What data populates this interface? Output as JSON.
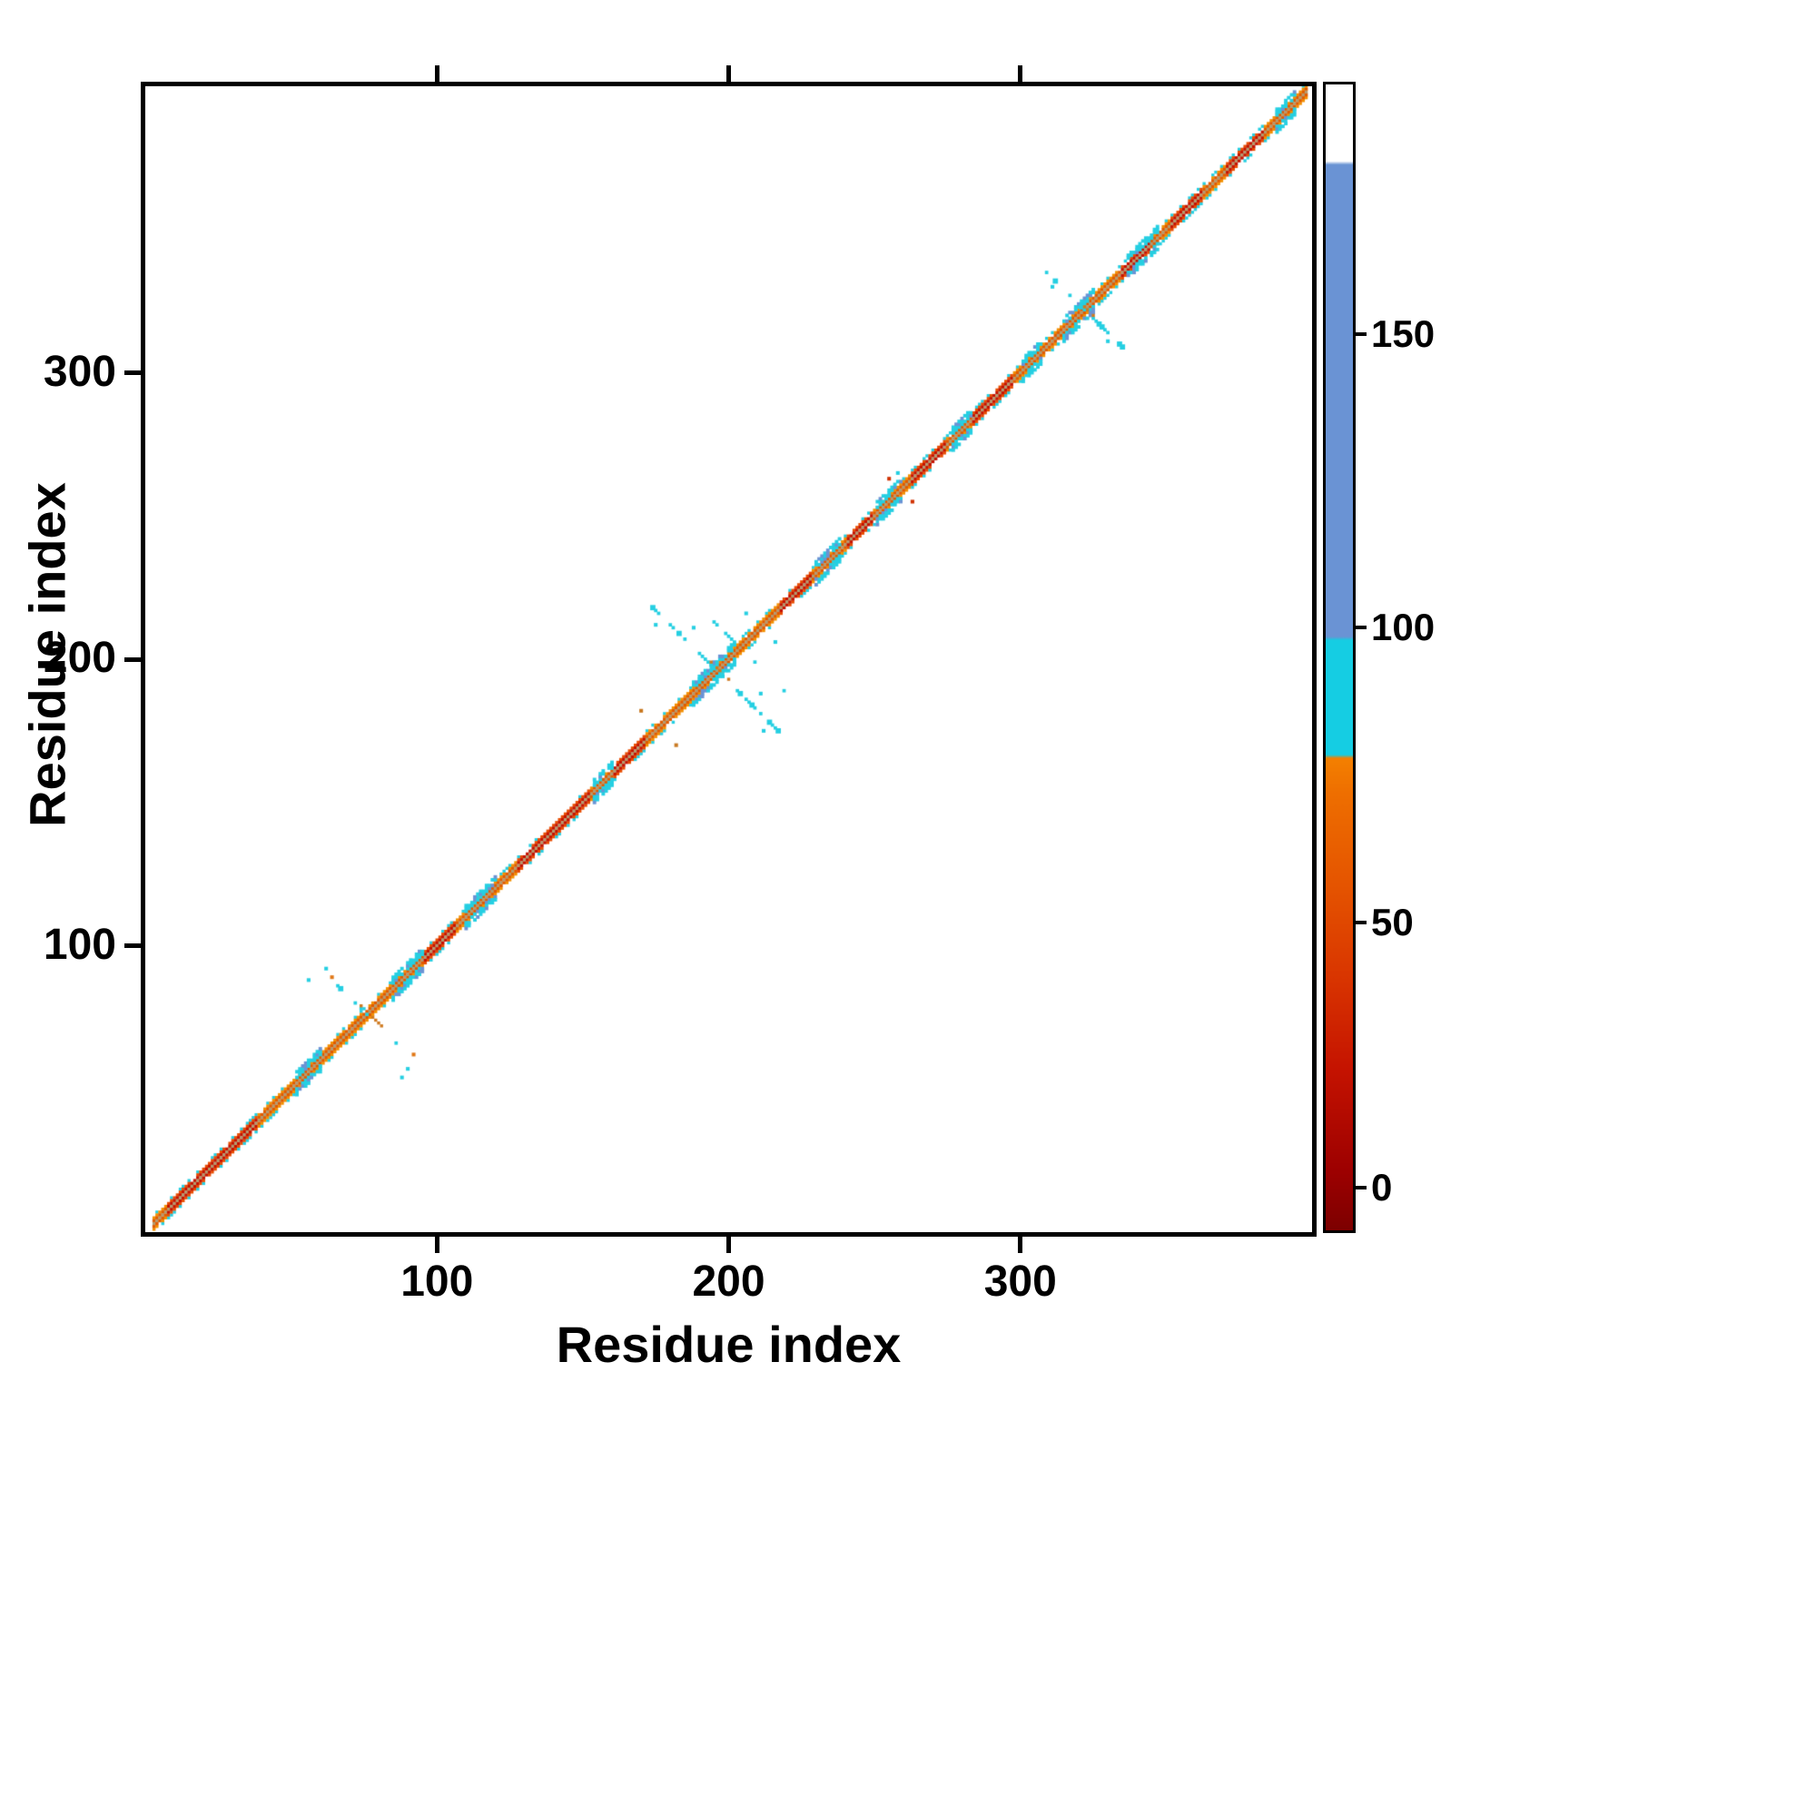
{
  "chart_data": {
    "type": "heatmap",
    "title": "",
    "xlabel": "Residue index",
    "ylabel": "Residue index",
    "x_range": [
      0,
      400
    ],
    "y_range": [
      0,
      400
    ],
    "grid": false,
    "legend": "colorbar-right",
    "x_ticks": [
      {
        "value": 100,
        "label": "100"
      },
      {
        "value": 200,
        "label": "200"
      },
      {
        "value": 300,
        "label": "300"
      }
    ],
    "y_ticks": [
      {
        "value": 100,
        "label": "100"
      },
      {
        "value": 200,
        "label": "200"
      },
      {
        "value": 300,
        "label": "300"
      }
    ],
    "colorbar": {
      "ticks": [
        {
          "label": "0",
          "pos": 0.037
        },
        {
          "label": "50",
          "pos": 0.269
        },
        {
          "label": "100",
          "pos": 0.526
        },
        {
          "label": "150",
          "pos": 0.782
        }
      ],
      "stops": [
        {
          "pos": 0.0,
          "color": "#7d0000"
        },
        {
          "pos": 0.05,
          "color": "#9c0000"
        },
        {
          "pos": 0.14,
          "color": "#c51300"
        },
        {
          "pos": 0.22,
          "color": "#d93500"
        },
        {
          "pos": 0.3,
          "color": "#e55400"
        },
        {
          "pos": 0.38,
          "color": "#ee6e00"
        },
        {
          "pos": 0.412,
          "color": "#f48000"
        },
        {
          "pos": 0.415,
          "color": "#15cde3"
        },
        {
          "pos": 0.515,
          "color": "#15cde3"
        },
        {
          "pos": 0.518,
          "color": "#6a93d4"
        },
        {
          "pos": 0.93,
          "color": "#6a93d4"
        },
        {
          "pos": 0.933,
          "color": "#ffffff"
        },
        {
          "pos": 1.0,
          "color": "#ffffff"
        }
      ]
    },
    "description": "Protein residue-residue contact map colored by the colorbar scale; contacts concentrate in a narrow band along the main diagonal with anti-diagonal hairpin crosses near residues 76, 196 and 322.",
    "diagonal": {
      "start": 3,
      "end": 398,
      "center_color": "#b49a6e",
      "inner_color": "#e05a00",
      "outer_color": "#f29000",
      "fringe_color": "#25cfe2",
      "blue_color": "#6a93d4",
      "red_inner": "#c41200",
      "red_outer": "#e84d00"
    },
    "red_segments": [
      [
        8,
        38
      ],
      [
        96,
        106
      ],
      [
        128,
        152
      ],
      [
        161,
        171
      ],
      [
        218,
        228
      ],
      [
        241,
        249
      ],
      [
        263,
        274
      ],
      [
        284,
        297
      ],
      [
        335,
        344
      ],
      [
        352,
        362
      ],
      [
        371,
        383
      ]
    ],
    "cyan_blobs": [
      {
        "c": 56,
        "r": 4
      },
      {
        "c": 90,
        "r": 5
      },
      {
        "c": 115,
        "r": 5
      },
      {
        "c": 157,
        "r": 3
      },
      {
        "c": 195,
        "r": 7
      },
      {
        "c": 234,
        "r": 4
      },
      {
        "c": 255,
        "r": 4
      },
      {
        "c": 280,
        "r": 3
      },
      {
        "c": 304,
        "r": 3
      },
      {
        "c": 320,
        "r": 5
      },
      {
        "c": 342,
        "r": 5
      },
      {
        "c": 391,
        "r": 3
      }
    ],
    "crosses": [
      {
        "c": 196,
        "arm": 22,
        "density": 0.55,
        "par": 8
      },
      {
        "c": 322,
        "arm": 13,
        "density": 0.5
      },
      {
        "c": 76,
        "arm": 15,
        "density": 0.25
      }
    ],
    "extra_points": [
      {
        "x": 62,
        "y": 92,
        "color": "#25cfe2"
      },
      {
        "x": 64,
        "y": 89,
        "color": "#e07818"
      },
      {
        "x": 92,
        "y": 62,
        "color": "#e07818"
      },
      {
        "x": 90,
        "y": 57,
        "color": "#25cfe2"
      },
      {
        "x": 56,
        "y": 88,
        "color": "#25cfe2"
      },
      {
        "x": 88,
        "y": 54,
        "color": "#25cfe2"
      },
      {
        "x": 175,
        "y": 212,
        "color": "#25cfe2"
      },
      {
        "x": 212,
        "y": 175,
        "color": "#25cfe2"
      },
      {
        "x": 206,
        "y": 216,
        "color": "#25cfe2"
      },
      {
        "x": 216,
        "y": 206,
        "color": "#25cfe2"
      },
      {
        "x": 188,
        "y": 211,
        "color": "#25cfe2"
      },
      {
        "x": 211,
        "y": 188,
        "color": "#25cfe2"
      },
      {
        "x": 170,
        "y": 182,
        "color": "#c87820"
      },
      {
        "x": 182,
        "y": 170,
        "color": "#c87820"
      },
      {
        "x": 255,
        "y": 263,
        "color": "#d03000"
      },
      {
        "x": 263,
        "y": 255,
        "color": "#d03000"
      },
      {
        "x": 258,
        "y": 265,
        "color": "#25cfe2"
      },
      {
        "x": 311,
        "y": 330,
        "color": "#25cfe2"
      },
      {
        "x": 330,
        "y": 311,
        "color": "#25cfe2"
      }
    ]
  }
}
